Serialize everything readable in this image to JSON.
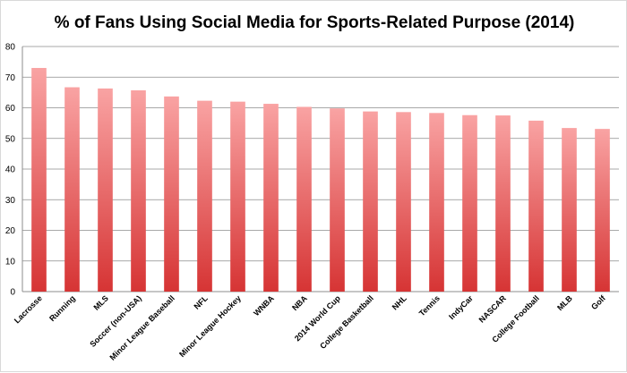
{
  "chart_data": {
    "type": "bar",
    "title": "% of Fans Using Social Media for Sports-Related Purpose (2014)",
    "xlabel": "",
    "ylabel": "",
    "ylim": [
      0,
      80
    ],
    "yticks": [
      0,
      10,
      20,
      30,
      40,
      50,
      60,
      70,
      80
    ],
    "grid": true,
    "categories": [
      "Lacrosse",
      "Running",
      "MLS",
      "Soccer (non-USA)",
      "Minor League Baseball",
      "NFL",
      "Minor League Hockey",
      "WNBA",
      "NBA",
      "2014 World Cup",
      "College Basketball",
      "NHL",
      "Tennis",
      "IndyCar",
      "NASCAR",
      "College Football",
      "MLB",
      "Golf"
    ],
    "values": [
      73,
      66.7,
      66.3,
      65.7,
      63.7,
      62.3,
      62,
      61.3,
      60.3,
      59.8,
      58.8,
      58.6,
      58.3,
      57.6,
      57.5,
      55.8,
      53.4,
      53.1
    ],
    "colors": {
      "bar_top": "#f9a3a3",
      "bar_bottom": "#d63434",
      "grid": "#8c8c8c",
      "axis": "#8c8c8c"
    }
  }
}
